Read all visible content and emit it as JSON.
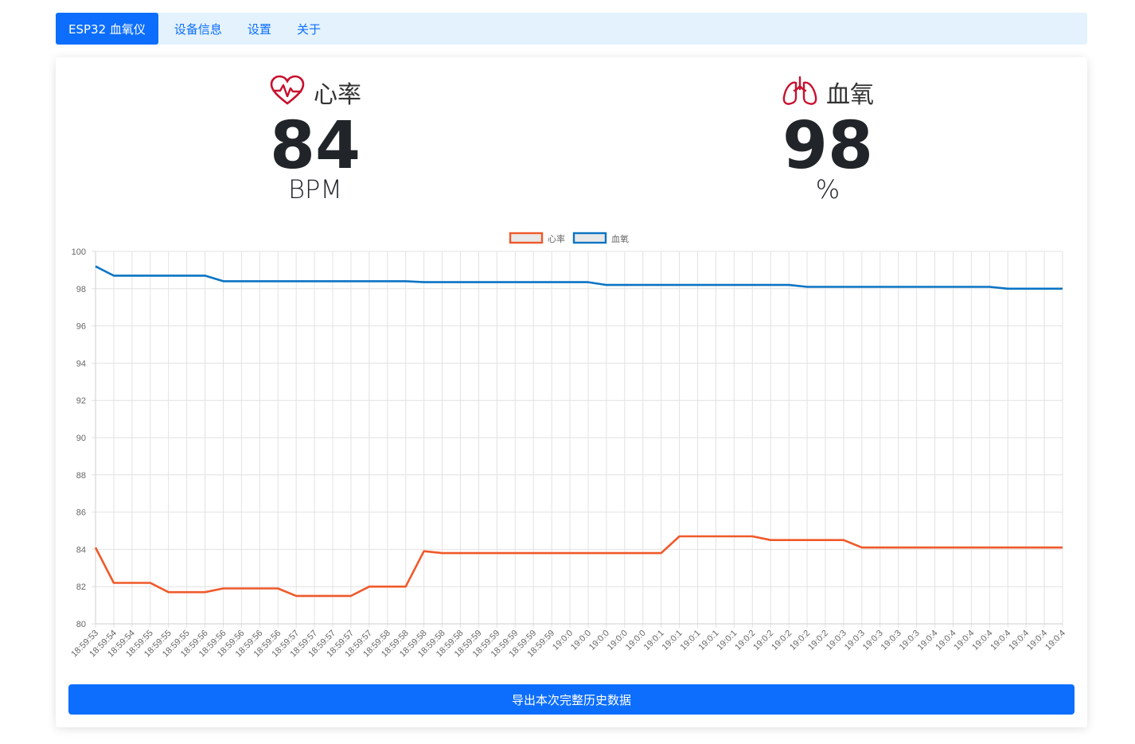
{
  "nav": {
    "brand": "ESP32 血氧仪",
    "links": [
      "设备信息",
      "设置",
      "关于"
    ]
  },
  "metrics": {
    "heart_rate": {
      "label": "心率",
      "value": "84",
      "unit": "BPM",
      "icon": "heart-pulse-icon"
    },
    "spo2": {
      "label": "血氧",
      "value": "98",
      "unit": "%",
      "icon": "lungs-icon"
    }
  },
  "colors": {
    "accent": "#0d6efd",
    "nav_bg": "#e3f2fd",
    "heart_line": "#f0592a",
    "spo2_line": "#0a74c4",
    "icon_red": "#c8102e"
  },
  "export_button": "导出本次完整历史数据",
  "chart_data": {
    "type": "line",
    "legend_position": "top",
    "grid": true,
    "ylim": [
      80,
      100
    ],
    "y_ticks": [
      80,
      82,
      84,
      86,
      88,
      90,
      92,
      94,
      96,
      98,
      100
    ],
    "categories": [
      "18:59:53",
      "18:59:54",
      "18:59:54",
      "18:59:55",
      "18:59:55",
      "18:59:55",
      "18:59:56",
      "18:59:56",
      "18:59:56",
      "18:59:56",
      "18:59:56",
      "18:59:57",
      "18:59:57",
      "18:59:57",
      "18:59:57",
      "18:59:57",
      "18:59:58",
      "18:59:58",
      "18:59:58",
      "18:59:58",
      "18:59:58",
      "18:59:59",
      "18:59:59",
      "18:59:59",
      "18:59:59",
      "18:59:59",
      "19:0:0",
      "19:0:0",
      "19:0:0",
      "19:0:0",
      "19:0:0",
      "19:0:1",
      "19:0:1",
      "19:0:1",
      "19:0:1",
      "19:0:1",
      "19:0:2",
      "19:0:2",
      "19:0:2",
      "19:0:2",
      "19:0:2",
      "19:0:3",
      "19:0:3",
      "19:0:3",
      "19:0:3",
      "19:0:3",
      "19:0:4",
      "19:0:4",
      "19:0:4",
      "19:0:4",
      "19:0:4",
      "19:0:4",
      "19:0:4",
      "19:0:4"
    ],
    "series": [
      {
        "name": "心率",
        "values": [
          84.1,
          82.2,
          82.2,
          82.2,
          81.7,
          81.7,
          81.7,
          81.9,
          81.9,
          81.9,
          81.9,
          81.5,
          81.5,
          81.5,
          81.5,
          82.0,
          82.0,
          82.0,
          83.9,
          83.8,
          83.8,
          83.8,
          83.8,
          83.8,
          83.8,
          83.8,
          83.8,
          83.8,
          83.8,
          83.8,
          83.8,
          83.8,
          84.7,
          84.7,
          84.7,
          84.7,
          84.7,
          84.5,
          84.5,
          84.5,
          84.5,
          84.5,
          84.1,
          84.1,
          84.1,
          84.1,
          84.1,
          84.1,
          84.1,
          84.1,
          84.1,
          84.1,
          84.1,
          84.1
        ]
      },
      {
        "name": "血氧",
        "values": [
          99.2,
          98.7,
          98.7,
          98.7,
          98.7,
          98.7,
          98.7,
          98.4,
          98.4,
          98.4,
          98.4,
          98.4,
          98.4,
          98.4,
          98.4,
          98.4,
          98.4,
          98.4,
          98.35,
          98.35,
          98.35,
          98.35,
          98.35,
          98.35,
          98.35,
          98.35,
          98.35,
          98.35,
          98.2,
          98.2,
          98.2,
          98.2,
          98.2,
          98.2,
          98.2,
          98.2,
          98.2,
          98.2,
          98.2,
          98.1,
          98.1,
          98.1,
          98.1,
          98.1,
          98.1,
          98.1,
          98.1,
          98.1,
          98.1,
          98.1,
          98.0,
          98.0,
          98.0,
          98.0
        ]
      }
    ]
  }
}
